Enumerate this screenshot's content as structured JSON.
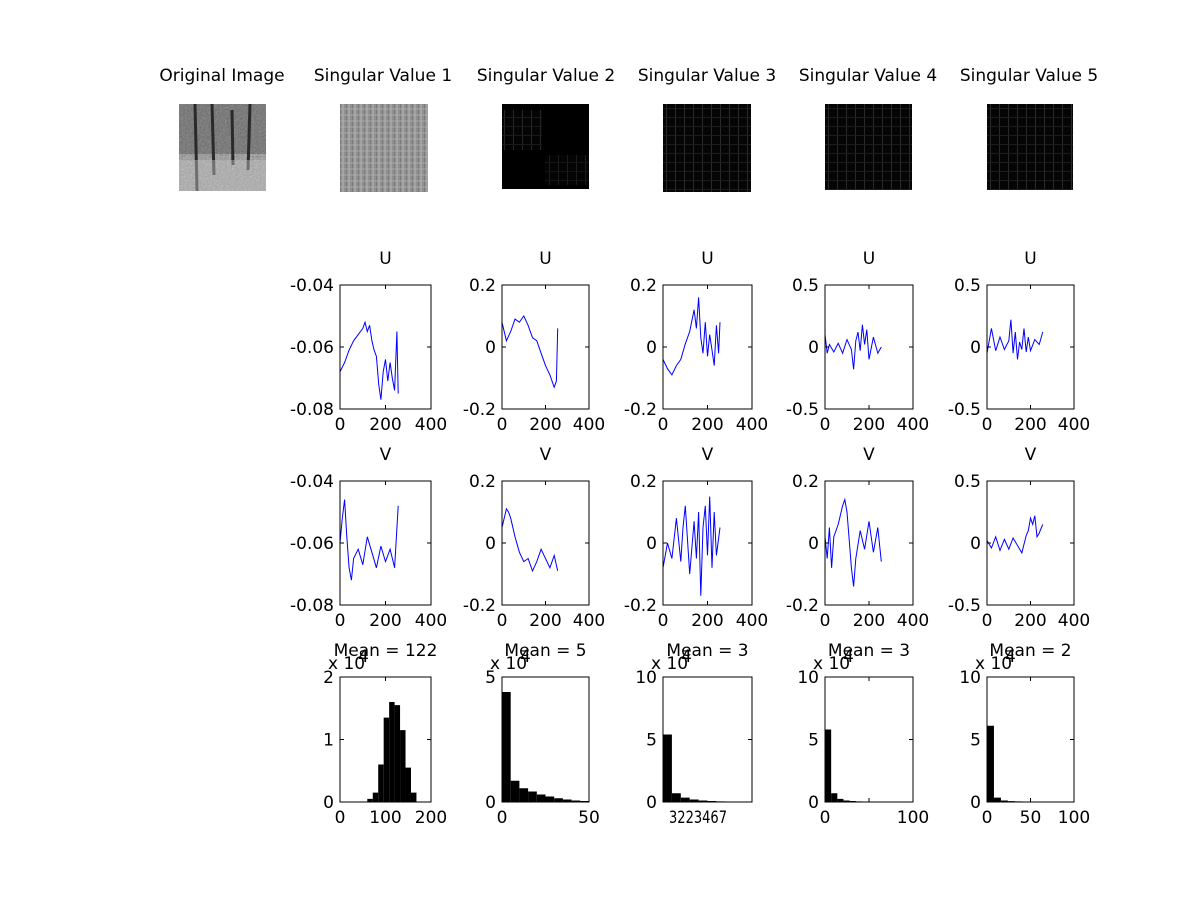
{
  "images": {
    "titles": [
      "Original Image",
      "Singular Value 1",
      "Singular Value 2",
      "Singular Value 3",
      "Singular Value 4",
      "Singular Value 5"
    ]
  },
  "colors": {
    "line": "#0000ff",
    "bars": "#000000",
    "axes": "#000000",
    "background": "#ffffff"
  },
  "chart_data": [
    {
      "type": "line",
      "title": "U",
      "xlim": [
        0,
        400
      ],
      "ylim": [
        -0.08,
        -0.04
      ],
      "xticks": [
        0,
        200,
        400
      ],
      "yticks": [
        -0.08,
        -0.06,
        -0.04
      ],
      "xticklabels": [
        "0",
        "200",
        "400"
      ],
      "yticklabels": [
        "-0.08",
        "-0.06",
        "-0.04"
      ],
      "series": [
        {
          "x": [
            0,
            20,
            40,
            60,
            80,
            100,
            110,
            120,
            130,
            140,
            150,
            160,
            170,
            180,
            190,
            200,
            210,
            220,
            230,
            240,
            250,
            256
          ],
          "y": [
            -0.068,
            -0.065,
            -0.061,
            -0.058,
            -0.056,
            -0.054,
            -0.052,
            -0.055,
            -0.053,
            -0.058,
            -0.061,
            -0.063,
            -0.072,
            -0.077,
            -0.068,
            -0.064,
            -0.071,
            -0.065,
            -0.07,
            -0.074,
            -0.055,
            -0.075
          ]
        }
      ]
    },
    {
      "type": "line",
      "title": "U",
      "xlim": [
        0,
        400
      ],
      "ylim": [
        -0.2,
        0.2
      ],
      "xticks": [
        0,
        200,
        400
      ],
      "yticks": [
        -0.2,
        0,
        0.2
      ],
      "xticklabels": [
        "0",
        "200",
        "400"
      ],
      "yticklabels": [
        "-0.2",
        "0",
        "0.2"
      ],
      "series": [
        {
          "x": [
            0,
            20,
            40,
            60,
            80,
            100,
            120,
            140,
            160,
            180,
            200,
            220,
            240,
            250,
            256
          ],
          "y": [
            0.08,
            0.02,
            0.05,
            0.09,
            0.08,
            0.1,
            0.07,
            0.03,
            0.02,
            -0.02,
            -0.06,
            -0.09,
            -0.13,
            -0.11,
            0.06
          ]
        }
      ]
    },
    {
      "type": "line",
      "title": "U",
      "xlim": [
        0,
        400
      ],
      "ylim": [
        -0.2,
        0.2
      ],
      "xticks": [
        0,
        200,
        400
      ],
      "yticks": [
        -0.2,
        0,
        0.2
      ],
      "xticklabels": [
        "0",
        "200",
        "400"
      ],
      "yticklabels": [
        "-0.2",
        "0",
        "0.2"
      ],
      "series": [
        {
          "x": [
            0,
            20,
            40,
            60,
            80,
            100,
            120,
            140,
            150,
            160,
            170,
            180,
            190,
            200,
            210,
            220,
            230,
            240,
            250,
            256
          ],
          "y": [
            -0.04,
            -0.07,
            -0.09,
            -0.06,
            -0.04,
            0.01,
            0.05,
            0.12,
            0.06,
            0.16,
            0.03,
            -0.02,
            0.08,
            -0.03,
            0.04,
            -0.01,
            -0.06,
            0.07,
            -0.02,
            0.08
          ]
        }
      ]
    },
    {
      "type": "line",
      "title": "U",
      "xlim": [
        0,
        400
      ],
      "ylim": [
        -0.5,
        0.5
      ],
      "xticks": [
        0,
        200,
        400
      ],
      "yticks": [
        -0.5,
        0,
        0.5
      ],
      "xticklabels": [
        "0",
        "200",
        "400"
      ],
      "yticklabels": [
        "-0.5",
        "0",
        "0.5"
      ],
      "series": [
        {
          "x": [
            0,
            10,
            20,
            40,
            60,
            80,
            100,
            120,
            130,
            140,
            150,
            160,
            170,
            180,
            190,
            200,
            220,
            240,
            256
          ],
          "y": [
            0.1,
            -0.05,
            0.02,
            -0.04,
            0.03,
            -0.05,
            0.06,
            -0.02,
            -0.18,
            0.05,
            0.12,
            -0.03,
            0.18,
            0.02,
            0.14,
            -0.1,
            0.08,
            -0.05,
            0.0
          ]
        }
      ]
    },
    {
      "type": "line",
      "title": "U",
      "xlim": [
        0,
        400
      ],
      "ylim": [
        -0.5,
        0.5
      ],
      "xticks": [
        0,
        200,
        400
      ],
      "yticks": [
        -0.5,
        0,
        0.5
      ],
      "xticklabels": [
        "0",
        "200",
        "400"
      ],
      "yticklabels": [
        "-0.5",
        "0",
        "0.5"
      ],
      "series": [
        {
          "x": [
            0,
            10,
            20,
            40,
            60,
            80,
            100,
            110,
            120,
            130,
            140,
            150,
            160,
            170,
            180,
            190,
            200,
            220,
            240,
            256
          ],
          "y": [
            -0.05,
            0.05,
            0.15,
            -0.03,
            0.08,
            -0.02,
            0.05,
            0.22,
            -0.05,
            0.12,
            -0.1,
            0.04,
            -0.02,
            0.15,
            -0.04,
            0.08,
            -0.03,
            0.06,
            0.02,
            0.12
          ]
        }
      ]
    },
    {
      "type": "line",
      "title": "V",
      "xlim": [
        0,
        400
      ],
      "ylim": [
        -0.08,
        -0.04
      ],
      "xticks": [
        0,
        200,
        400
      ],
      "yticks": [
        -0.08,
        -0.06,
        -0.04
      ],
      "xticklabels": [
        "0",
        "200",
        "400"
      ],
      "yticklabels": [
        "-0.08",
        "-0.06",
        "-0.04"
      ],
      "series": [
        {
          "x": [
            0,
            10,
            20,
            30,
            40,
            50,
            60,
            80,
            100,
            120,
            140,
            160,
            180,
            200,
            220,
            240,
            256
          ],
          "y": [
            -0.06,
            -0.052,
            -0.046,
            -0.058,
            -0.068,
            -0.072,
            -0.065,
            -0.062,
            -0.067,
            -0.058,
            -0.063,
            -0.068,
            -0.061,
            -0.066,
            -0.062,
            -0.068,
            -0.048
          ]
        }
      ]
    },
    {
      "type": "line",
      "title": "V",
      "xlim": [
        0,
        400
      ],
      "ylim": [
        -0.2,
        0.2
      ],
      "xticks": [
        0,
        200,
        400
      ],
      "yticks": [
        -0.2,
        0,
        0.2
      ],
      "xticklabels": [
        "0",
        "200",
        "400"
      ],
      "yticklabels": [
        "-0.2",
        "0",
        "0.2"
      ],
      "series": [
        {
          "x": [
            0,
            10,
            20,
            30,
            40,
            60,
            80,
            100,
            120,
            140,
            160,
            180,
            200,
            220,
            240,
            256
          ],
          "y": [
            0.05,
            0.08,
            0.11,
            0.1,
            0.08,
            0.02,
            -0.03,
            -0.06,
            -0.05,
            -0.09,
            -0.06,
            -0.02,
            -0.05,
            -0.08,
            -0.04,
            -0.09
          ]
        }
      ]
    },
    {
      "type": "line",
      "title": "V",
      "xlim": [
        0,
        400
      ],
      "ylim": [
        -0.2,
        0.2
      ],
      "xticks": [
        0,
        200,
        400
      ],
      "yticks": [
        -0.2,
        0,
        0.2
      ],
      "xticklabels": [
        "0",
        "200",
        "400"
      ],
      "yticklabels": [
        "-0.2",
        "0",
        "0.2"
      ],
      "series": [
        {
          "x": [
            0,
            20,
            40,
            60,
            80,
            90,
            100,
            120,
            140,
            150,
            160,
            170,
            180,
            190,
            200,
            210,
            220,
            230,
            240,
            256
          ],
          "y": [
            -0.08,
            0.0,
            -0.05,
            0.08,
            -0.06,
            0.05,
            0.12,
            -0.1,
            0.07,
            -0.05,
            0.1,
            -0.17,
            0.05,
            0.12,
            -0.04,
            0.15,
            -0.08,
            0.1,
            -0.04,
            0.05
          ]
        }
      ]
    },
    {
      "type": "line",
      "title": "V",
      "xlim": [
        0,
        400
      ],
      "ylim": [
        -0.2,
        0.2
      ],
      "xticks": [
        0,
        200,
        400
      ],
      "yticks": [
        -0.2,
        0,
        0.2
      ],
      "xticklabels": [
        "0",
        "200",
        "400"
      ],
      "yticklabels": [
        "-0.2",
        "0",
        "0.2"
      ],
      "series": [
        {
          "x": [
            0,
            10,
            20,
            30,
            40,
            60,
            80,
            90,
            100,
            120,
            130,
            140,
            160,
            180,
            200,
            220,
            240,
            256
          ],
          "y": [
            0.02,
            -0.05,
            0.05,
            -0.08,
            0.02,
            0.06,
            0.12,
            0.14,
            0.1,
            -0.08,
            -0.14,
            -0.05,
            0.04,
            -0.02,
            0.07,
            -0.03,
            0.05,
            -0.06
          ]
        }
      ]
    },
    {
      "type": "line",
      "title": "V",
      "xlim": [
        0,
        400
      ],
      "ylim": [
        -0.5,
        0.5
      ],
      "xticks": [
        0,
        200,
        400
      ],
      "yticks": [
        -0.5,
        0,
        0.5
      ],
      "xticklabels": [
        "0",
        "200",
        "400"
      ],
      "yticklabels": [
        "-0.5",
        "0",
        "0.5"
      ],
      "series": [
        {
          "x": [
            0,
            20,
            40,
            60,
            80,
            100,
            120,
            140,
            160,
            180,
            190,
            200,
            210,
            220,
            230,
            240,
            256
          ],
          "y": [
            0.02,
            -0.04,
            0.05,
            -0.06,
            0.03,
            -0.05,
            0.04,
            -0.02,
            -0.08,
            0.06,
            0.1,
            0.2,
            0.15,
            0.22,
            0.05,
            0.08,
            0.15
          ]
        }
      ]
    },
    {
      "type": "bar",
      "title": "Mean = 122",
      "exponent_label": "x 10",
      "exponent": "4",
      "xlim": [
        0,
        200
      ],
      "ylim": [
        0,
        2
      ],
      "xticks": [
        0,
        100,
        200
      ],
      "yticks": [
        0,
        1,
        2
      ],
      "xticklabels": [
        "0",
        "100",
        "200"
      ],
      "yticklabels": [
        "0",
        "1",
        "2"
      ],
      "bins_center": [
        66,
        78,
        90,
        102,
        114,
        126,
        138,
        150,
        162
      ],
      "values": [
        0.05,
        0.15,
        0.6,
        1.35,
        1.6,
        1.55,
        1.15,
        0.55,
        0.15
      ],
      "bin_width": 12
    },
    {
      "type": "bar",
      "title": "Mean = 5",
      "exponent_label": "x 10",
      "exponent": "4",
      "xlim": [
        0,
        50
      ],
      "ylim": [
        0,
        5
      ],
      "xticks": [
        0,
        50
      ],
      "yticks": [
        0,
        5
      ],
      "xticklabels": [
        "0",
        "50"
      ],
      "yticklabels": [
        "0",
        "5"
      ],
      "bins_center": [
        2.5,
        7.5,
        12.5,
        17.5,
        22.5,
        27.5,
        32.5,
        37.5,
        42.5,
        47.5
      ],
      "values": [
        4.4,
        0.85,
        0.55,
        0.42,
        0.3,
        0.22,
        0.15,
        0.1,
        0.06,
        0.04
      ],
      "bin_width": 5
    },
    {
      "type": "bar",
      "title": "Mean = 3",
      "exponent_label": "x 10",
      "exponent": "4",
      "xlim": [
        0,
        60
      ],
      "ylim": [
        0,
        10
      ],
      "xticks": [
        0,
        60
      ],
      "yticks": [
        0,
        5,
        10
      ],
      "xticklabels": [
        "",
        ""
      ],
      "yticklabels": [
        "0",
        "5",
        "10"
      ],
      "overlapping_tick_text": "3223467",
      "bins_center": [
        3,
        9,
        15,
        21,
        27,
        33,
        39,
        45,
        51,
        57
      ],
      "values": [
        5.4,
        0.7,
        0.35,
        0.2,
        0.12,
        0.08,
        0.05,
        0.03,
        0.02,
        0.01
      ],
      "bin_width": 6
    },
    {
      "type": "bar",
      "title": "Mean = 3",
      "exponent_label": "x 10",
      "exponent": "4",
      "xlim": [
        0,
        100
      ],
      "ylim": [
        0,
        10
      ],
      "xticks": [
        0,
        50,
        100
      ],
      "yticks": [
        0,
        5,
        10
      ],
      "xticklabels": [
        "0",
        "",
        "100"
      ],
      "yticklabels": [
        "0",
        "5",
        "10"
      ],
      "bins_center": [
        3.5,
        10.5,
        17.5,
        24.5,
        31.5,
        38.5,
        45.5,
        52.5,
        59.5,
        66.5
      ],
      "values": [
        5.8,
        0.7,
        0.25,
        0.12,
        0.08,
        0.05,
        0.04,
        0.03,
        0.03,
        0.02
      ],
      "bin_width": 7
    },
    {
      "type": "bar",
      "title": "Mean = 2",
      "exponent_label": "x 10",
      "exponent": "4",
      "xlim": [
        0,
        100
      ],
      "ylim": [
        0,
        10
      ],
      "xticks": [
        0,
        50,
        100
      ],
      "yticks": [
        0,
        5,
        10
      ],
      "xticklabels": [
        "0",
        "50",
        "100"
      ],
      "yticklabels": [
        "0",
        "5",
        "10"
      ],
      "bins_center": [
        4,
        12,
        20,
        28,
        36,
        44,
        52,
        60,
        68,
        76,
        84
      ],
      "values": [
        6.1,
        0.35,
        0.12,
        0.07,
        0.05,
        0.04,
        0.03,
        0.03,
        0.02,
        0.02,
        0.02
      ],
      "bin_width": 8
    }
  ]
}
